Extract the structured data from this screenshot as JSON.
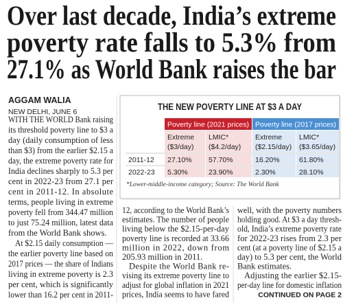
{
  "headline": {
    "lines": [
      "Over last decade, India’s extreme",
      "poverty rate falls to 5.3% from",
      "27.1% as World Bank raises the bar"
    ]
  },
  "byline": {
    "author": "AGGAM WALIA",
    "dateline": "NEW DELHI, JUNE 6"
  },
  "article": {
    "columns": [
      {
        "paragraphs": [
          {
            "lines": [
              "WITH THE WORLD Bank raising",
              "its threshold poverty line to $3 a",
              "day (daily consumption of less",
              "than $3) from the earlier $2.15 a",
              "day, the extreme poverty rate for",
              "India declines sharply to 5.3 per",
              "cent in 2022-23 from 27.1 per",
              "cent in 2011-12. In absolute",
              "terms, people living in extreme",
              "poverty fell from 344.47 million",
              "to just 75.24 million, latest data",
              "from the World Bank shows."
            ]
          },
          {
            "lines": [
              "At $2.15 daily consumption —",
              "the earlier poverty line based on",
              "2017 prices — the share of Indians",
              "living in extreme poverty is 2.3",
              "per cent, which is significantly",
              "lower than 16.2 per cent in 2011-"
            ]
          }
        ]
      },
      {
        "paragraphs": [
          {
            "lines": [
              "12, according to the World Bank’s",
              "estimates. The number of people",
              "living below the $2.15-per-day",
              "poverty line is recorded at 33.66",
              "million in 2022, down from",
              "205.93 million in 2011."
            ]
          },
          {
            "lines": [
              "Despite the World Bank re-",
              "vising its extreme poverty line to",
              "adjust for global inflation in 2021",
              "prices, India seems to have fared"
            ]
          }
        ]
      },
      {
        "paragraphs": [
          {
            "lines": [
              "well, with the poverty numbers",
              "holding good. At $3 a day thresh-",
              "old, India’s extreme poverty rate",
              "for 2022-23 rises from 2.3 per",
              "cent (at a poverty line of $2.15 a",
              "day) to 5.3 per cent, the World",
              "Bank estimates."
            ]
          },
          {
            "lines": [
              "Adjusting the earlier $2.15-",
              "per-day line for domestic inflation"
            ]
          }
        ]
      }
    ],
    "continued": "CONTINUED ON PAGE 2"
  },
  "table": {
    "title": "THE NEW POVERTY LINE AT $3 A DAY",
    "group_headers": [
      "Poverty line (2021 prices)",
      "Poverty line (2017 prices)"
    ],
    "column_headers": [
      {
        "lines": [
          "Extreme",
          "($3/day)"
        ]
      },
      {
        "lines": [
          "LMIC*",
          "($4.2/day)"
        ]
      },
      {
        "lines": [
          "Extreme",
          "($2.15/day)"
        ]
      },
      {
        "lines": [
          "LMIC*",
          "($3.65/day)"
        ]
      }
    ],
    "rows": [
      [
        "2011-12",
        "27.10%",
        "57.70%",
        "16.20%",
        "61.80%"
      ],
      [
        "2022-23",
        "5.30%",
        "23.90%",
        "2.30%",
        "28.10%"
      ]
    ],
    "footnote": "*Lower-middle-income category; Source: The World Bank"
  }
}
